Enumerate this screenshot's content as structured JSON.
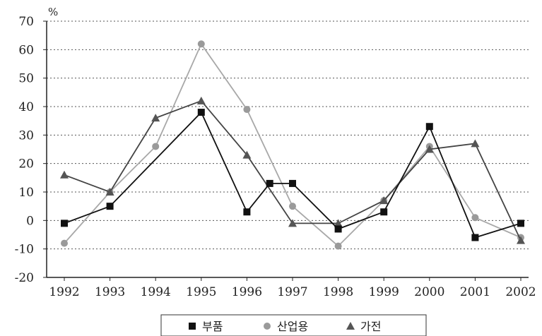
{
  "chart_data": {
    "type": "line",
    "unit_label": "%",
    "categories": [
      "1992",
      "1993",
      "1994",
      "1995",
      "1996",
      "1997",
      "1998",
      "1999",
      "2000",
      "2001",
      "2002"
    ],
    "ylim": [
      -20,
      70
    ],
    "yticks": [
      "70",
      "60",
      "50",
      "40",
      "30",
      "20",
      "10",
      "0",
      "-10",
      "-20"
    ],
    "grid": true,
    "legend_position": "bottom",
    "series": [
      {
        "name": "부품",
        "marker": "square",
        "line_color": "#111111",
        "marker_color": "#111111",
        "points": [
          {
            "x": "1992",
            "y": -1
          },
          {
            "x": "1993",
            "y": 5
          },
          {
            "x": "1995",
            "y": 38
          },
          {
            "x": "1996",
            "y": 3
          },
          {
            "x": "1996.5",
            "y": 13
          },
          {
            "x": "1997",
            "y": 13
          },
          {
            "x": "1998",
            "y": -3
          },
          {
            "x": "1999",
            "y": 3
          },
          {
            "x": "2000",
            "y": 33
          },
          {
            "x": "2001",
            "y": -6
          },
          {
            "x": "2002",
            "y": -1
          }
        ]
      },
      {
        "name": "산업용",
        "marker": "circle",
        "line_color": "#a8a8a8",
        "marker_color": "#9a9a9a",
        "points": [
          {
            "x": "1992",
            "y": -8
          },
          {
            "x": "1993",
            "y": 10
          },
          {
            "x": "1994",
            "y": 26
          },
          {
            "x": "1995",
            "y": 62
          },
          {
            "x": "1996",
            "y": 39
          },
          {
            "x": "1997",
            "y": 5
          },
          {
            "x": "1998",
            "y": -9
          },
          {
            "x": "1999",
            "y": 7
          },
          {
            "x": "2000",
            "y": 26
          },
          {
            "x": "2001",
            "y": 1
          },
          {
            "x": "2002",
            "y": -6
          }
        ]
      },
      {
        "name": "가전",
        "marker": "triangle",
        "line_color": "#444444",
        "marker_color": "#555555",
        "points": [
          {
            "x": "1992",
            "y": 16
          },
          {
            "x": "1993",
            "y": 10
          },
          {
            "x": "1994",
            "y": 36
          },
          {
            "x": "1995",
            "y": 42
          },
          {
            "x": "1996",
            "y": 23
          },
          {
            "x": "1997",
            "y": -1
          },
          {
            "x": "1998",
            "y": -1
          },
          {
            "x": "1999",
            "y": 7
          },
          {
            "x": "2000",
            "y": 25
          },
          {
            "x": "2001",
            "y": 27
          },
          {
            "x": "2002",
            "y": -7
          }
        ]
      }
    ]
  }
}
